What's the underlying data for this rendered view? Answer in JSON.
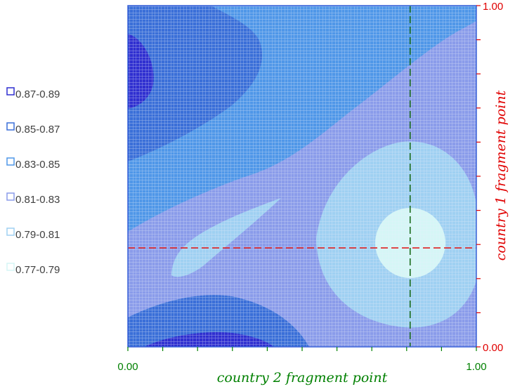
{
  "chart_data": {
    "type": "heatmap",
    "subtype": "contour",
    "title": "",
    "xlabel": "country 2 fragment point",
    "ylabel": "country 1 fragment point",
    "xlim": [
      0.0,
      1.0
    ],
    "ylim": [
      0.0,
      1.0
    ],
    "x_tick_labels": [
      "0.00",
      "1.00"
    ],
    "y_tick_labels": [
      "0.00",
      "1.00"
    ],
    "legend_position": "left",
    "legend": [
      {
        "range": "0.87-0.89",
        "color": "#2f2fd0"
      },
      {
        "range": "0.85-0.87",
        "color": "#3a6fd8"
      },
      {
        "range": "0.83-0.85",
        "color": "#4f97e8"
      },
      {
        "range": "0.81-0.83",
        "color": "#8a9cea"
      },
      {
        "range": "0.79-0.81",
        "color": "#9fd0f2"
      },
      {
        "range": "0.77-0.79",
        "color": "#d5f6f6"
      }
    ],
    "crosshair": {
      "x": 0.81,
      "y": 0.29
    },
    "colors": {
      "x_axis_text": "#008000",
      "y_axis_text": "#e00000",
      "vertical_line": "#1a6b1a",
      "horizontal_line": "#e02020"
    }
  }
}
